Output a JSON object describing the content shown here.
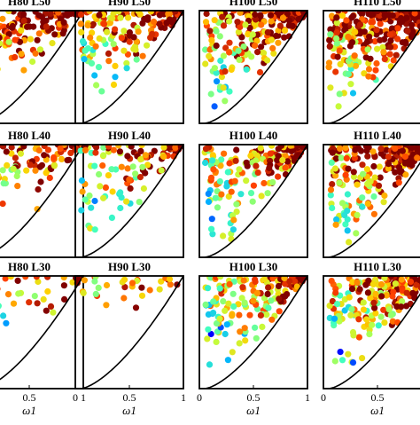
{
  "chart_data": {
    "type": "scatter",
    "grid": false,
    "colormap": "jet",
    "colormap_stops": [
      "#00007f",
      "#0000ff",
      "#00b0ff",
      "#40ffc0",
      "#c0ff40",
      "#ffd000",
      "#ff4000",
      "#800000"
    ],
    "boundary_curve": {
      "x0": 0.05,
      "power": 1.5,
      "color": "#000000"
    },
    "x_label": "ω1",
    "x_ticks": [
      "0",
      "0.5",
      "1"
    ],
    "panels": [
      {
        "title": "H80 L50",
        "n": 150,
        "xmin": 0.05,
        "ymin": 0.35,
        "bias": 0.2,
        "seed": 11
      },
      {
        "title": "H90 L50",
        "n": 150,
        "xmin": 0.05,
        "ymin": 0.25,
        "bias": 0.1,
        "seed": 12
      },
      {
        "title": "H100 L50",
        "n": 220,
        "xmin": 0.05,
        "ymin": 0.1,
        "bias": 0.15,
        "seed": 13
      },
      {
        "title": "H110 L50",
        "n": 280,
        "xmin": 0.05,
        "ymin": 0.1,
        "bias": 0.2,
        "seed": 14
      },
      {
        "title": "H80 L40",
        "n": 90,
        "xmin": 0.05,
        "ymin": 0.4,
        "bias": 0.1,
        "seed": 21
      },
      {
        "title": "H90 L40",
        "n": 110,
        "xmin": 0.05,
        "ymin": 0.2,
        "bias": 0.05,
        "seed": 22
      },
      {
        "title": "H100 L40",
        "n": 180,
        "xmin": 0.05,
        "ymin": 0.1,
        "bias": 0.05,
        "seed": 23
      },
      {
        "title": "H110 L40",
        "n": 220,
        "xmin": 0.05,
        "ymin": 0.1,
        "bias": 0.15,
        "seed": 24
      },
      {
        "title": "H80 L30",
        "n": 40,
        "xmin": 0.05,
        "ymin": 0.4,
        "bias": 0.0,
        "seed": 31
      },
      {
        "title": "H90 L30",
        "n": 30,
        "xmin": 0.05,
        "ymin": 0.55,
        "bias": 0.0,
        "seed": 32
      },
      {
        "title": "H100 L30",
        "n": 170,
        "xmin": 0.05,
        "ymin": 0.1,
        "bias": 0.0,
        "seed": 33
      },
      {
        "title": "H110 L30",
        "n": 200,
        "xmin": 0.05,
        "ymin": 0.1,
        "bias": 0.05,
        "seed": 34
      }
    ]
  }
}
